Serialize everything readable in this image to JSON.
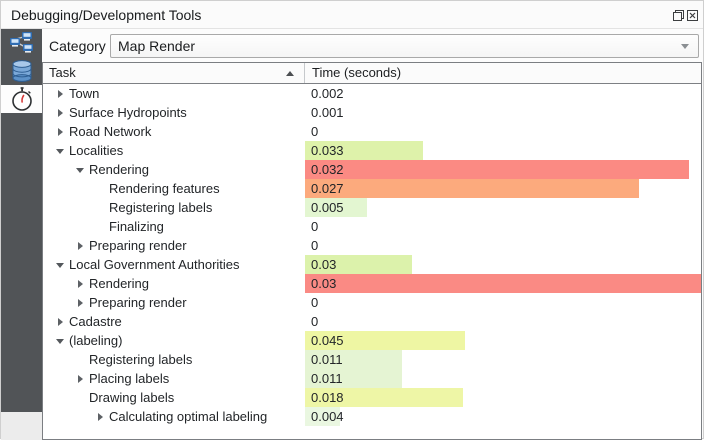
{
  "window": {
    "title": "Debugging/Development Tools"
  },
  "titlebar": {
    "float_icon": "float-window",
    "close_icon": "close-window"
  },
  "category": {
    "label": "Category",
    "value": "Map Render"
  },
  "sidebar": {
    "tabs": [
      {
        "id": "network-logger-tab",
        "icon": "network-icon",
        "selected": false
      },
      {
        "id": "query-logger-tab",
        "icon": "database-icon",
        "selected": false
      },
      {
        "id": "profiler-tab",
        "icon": "stopwatch-icon",
        "selected": true
      }
    ]
  },
  "profiler": {
    "columns": {
      "task": "Task",
      "time": "Time (seconds)"
    },
    "sort": {
      "column": "Task",
      "direction": "ascending"
    },
    "rows": [
      {
        "task": "Town",
        "time": "0.002",
        "level": 0,
        "expander": "collapsed",
        "bar_pct": 0,
        "bar_color": ""
      },
      {
        "task": "Surface Hydropoints",
        "time": "0.001",
        "level": 0,
        "expander": "collapsed",
        "bar_pct": 0,
        "bar_color": ""
      },
      {
        "task": "Road Network",
        "time": "0",
        "level": 0,
        "expander": "collapsed",
        "bar_pct": 0,
        "bar_color": ""
      },
      {
        "task": "Localities",
        "time": "0.033",
        "level": 0,
        "expander": "expanded",
        "bar_pct": 29.7,
        "bar_color": "#def2aa"
      },
      {
        "task": "Rendering",
        "time": "0.032",
        "level": 1,
        "expander": "expanded",
        "bar_pct": 97.0,
        "bar_color": "#fb8a83"
      },
      {
        "task": "Rendering features",
        "time": "0.027",
        "level": 2,
        "expander": "none",
        "bar_pct": 84.4,
        "bar_color": "#fcaa7d"
      },
      {
        "task": "Registering labels",
        "time": "0.005",
        "level": 2,
        "expander": "none",
        "bar_pct": 15.6,
        "bar_color": "#e3f6d1"
      },
      {
        "task": "Finalizing",
        "time": "0",
        "level": 2,
        "expander": "none",
        "bar_pct": 0,
        "bar_color": ""
      },
      {
        "task": "Preparing render",
        "time": "0",
        "level": 1,
        "expander": "collapsed",
        "bar_pct": 0,
        "bar_color": ""
      },
      {
        "task": "Local Government Authorities",
        "time": "0.03",
        "level": 0,
        "expander": "expanded",
        "bar_pct": 27.0,
        "bar_color": "#dcf2ab"
      },
      {
        "task": "Rendering",
        "time": "0.03",
        "level": 1,
        "expander": "collapsed",
        "bar_pct": 100,
        "bar_color": "#fa8a84"
      },
      {
        "task": "Preparing render",
        "time": "0",
        "level": 1,
        "expander": "collapsed",
        "bar_pct": 0,
        "bar_color": ""
      },
      {
        "task": "Cadastre",
        "time": "0",
        "level": 0,
        "expander": "collapsed",
        "bar_pct": 0,
        "bar_color": ""
      },
      {
        "task": "(labeling)",
        "time": "0.045",
        "level": 0,
        "expander": "expanded",
        "bar_pct": 40.5,
        "bar_color": "#eef6a3"
      },
      {
        "task": "Registering labels",
        "time": "0.011",
        "level": 1,
        "expander": "none",
        "bar_pct": 24.4,
        "bar_color": "#e5f4d3"
      },
      {
        "task": "Placing labels",
        "time": "0.011",
        "level": 1,
        "expander": "collapsed",
        "bar_pct": 24.4,
        "bar_color": "#e5f4d3"
      },
      {
        "task": "Drawing labels",
        "time": "0.018",
        "level": 1,
        "expander": "none",
        "bar_pct": 40.0,
        "bar_color": "#eef6a6"
      },
      {
        "task": "Calculating optimal labeling",
        "time": "0.004",
        "level": 2,
        "expander": "collapsed",
        "bar_pct": 8.9,
        "bar_color": "#eaf7e1"
      }
    ]
  }
}
